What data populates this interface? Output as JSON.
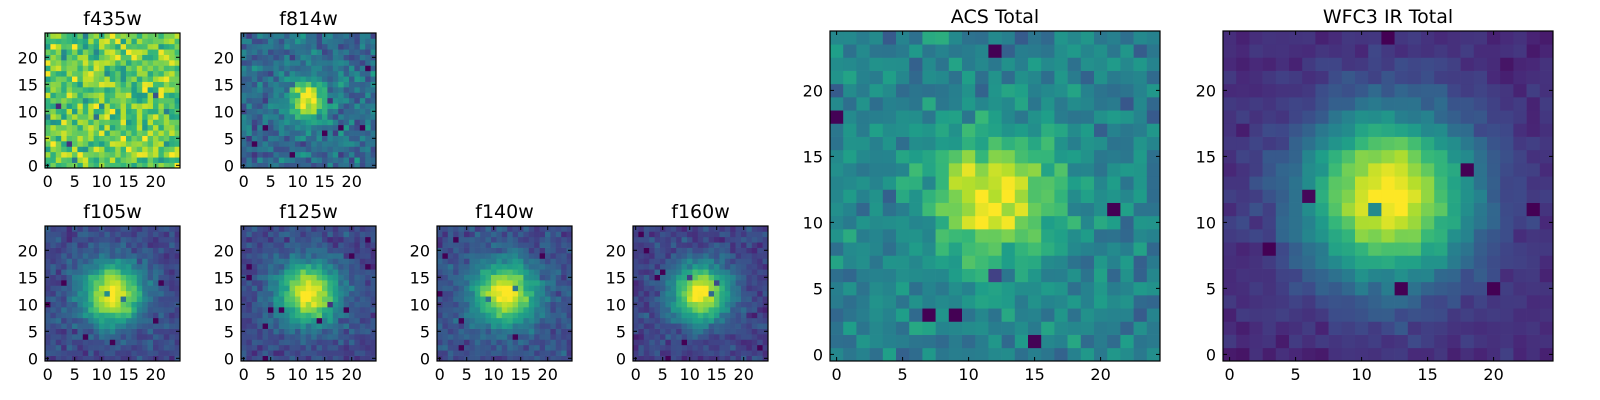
{
  "figure": {
    "colormap": "viridis",
    "colormap_stops": [
      "#440154",
      "#482878",
      "#3e4989",
      "#31688e",
      "#26828e",
      "#1f9e89",
      "#35b779",
      "#6ece58",
      "#b5de2b",
      "#fde725"
    ]
  },
  "chart_data": [
    {
      "type": "heatmap",
      "title": "f435w",
      "grid_size": 25,
      "xticks": [
        0,
        5,
        10,
        15,
        20
      ],
      "yticks": [
        0,
        5,
        10,
        15,
        20
      ],
      "xlim": [
        0,
        24
      ],
      "ylim": [
        0,
        24
      ],
      "colormap": "viridis",
      "image": {
        "kind": "noise",
        "background": 0.75,
        "noise": 0.18,
        "peak": 0.0,
        "center": [
          12,
          12
        ],
        "sigma": 4.0,
        "seed": 11
      }
    },
    {
      "type": "heatmap",
      "title": "f814w",
      "grid_size": 25,
      "xticks": [
        0,
        5,
        10,
        15,
        20
      ],
      "yticks": [
        0,
        5,
        10,
        15,
        20
      ],
      "xlim": [
        0,
        24
      ],
      "ylim": [
        0,
        24
      ],
      "colormap": "viridis",
      "image": {
        "kind": "source",
        "background": 0.35,
        "noise": 0.12,
        "peak": 0.65,
        "center": [
          12,
          12
        ],
        "sigma": 2.6,
        "seed": 23
      }
    },
    {
      "type": "heatmap",
      "title": "f105w",
      "grid_size": 25,
      "xticks": [
        0,
        5,
        10,
        15,
        20
      ],
      "yticks": [
        0,
        5,
        10,
        15,
        20
      ],
      "xlim": [
        0,
        24
      ],
      "ylim": [
        0,
        24
      ],
      "colormap": "viridis",
      "image": {
        "kind": "source",
        "background": 0.22,
        "noise": 0.07,
        "peak": 0.78,
        "center": [
          12,
          12
        ],
        "sigma": 4.0,
        "seed": 37
      }
    },
    {
      "type": "heatmap",
      "title": "f125w",
      "grid_size": 25,
      "xticks": [
        0,
        5,
        10,
        15,
        20
      ],
      "yticks": [
        0,
        5,
        10,
        15,
        20
      ],
      "xlim": [
        0,
        24
      ],
      "ylim": [
        0,
        24
      ],
      "colormap": "viridis",
      "image": {
        "kind": "source",
        "background": 0.22,
        "noise": 0.07,
        "peak": 0.78,
        "center": [
          12,
          12
        ],
        "sigma": 4.0,
        "seed": 41
      }
    },
    {
      "type": "heatmap",
      "title": "f140w",
      "grid_size": 25,
      "xticks": [
        0,
        5,
        10,
        15,
        20
      ],
      "yticks": [
        0,
        5,
        10,
        15,
        20
      ],
      "xlim": [
        0,
        24
      ],
      "ylim": [
        0,
        24
      ],
      "colormap": "viridis",
      "image": {
        "kind": "source",
        "background": 0.25,
        "noise": 0.07,
        "peak": 0.75,
        "center": [
          12,
          12
        ],
        "sigma": 4.0,
        "seed": 53
      }
    },
    {
      "type": "heatmap",
      "title": "f160w",
      "grid_size": 25,
      "xticks": [
        0,
        5,
        10,
        15,
        20
      ],
      "yticks": [
        0,
        5,
        10,
        15,
        20
      ],
      "xlim": [
        0,
        24
      ],
      "ylim": [
        0,
        24
      ],
      "colormap": "viridis",
      "image": {
        "kind": "source",
        "background": 0.2,
        "noise": 0.07,
        "peak": 0.8,
        "center": [
          12,
          12
        ],
        "sigma": 3.8,
        "seed": 67
      }
    },
    {
      "type": "heatmap",
      "title": "ACS Total",
      "grid_size": 25,
      "xticks": [
        0,
        5,
        10,
        15,
        20
      ],
      "yticks": [
        0,
        5,
        10,
        15,
        20
      ],
      "xlim": [
        0,
        24
      ],
      "ylim": [
        0,
        24
      ],
      "colormap": "viridis",
      "image": {
        "kind": "source",
        "background": 0.45,
        "noise": 0.1,
        "peak": 0.55,
        "center": [
          12,
          12
        ],
        "sigma": 3.2,
        "seed": 79
      }
    },
    {
      "type": "heatmap",
      "title": "WFC3 IR Total",
      "grid_size": 25,
      "xticks": [
        0,
        5,
        10,
        15,
        20
      ],
      "yticks": [
        0,
        5,
        10,
        15,
        20
      ],
      "xlim": [
        0,
        24
      ],
      "ylim": [
        0,
        24
      ],
      "colormap": "viridis",
      "image": {
        "kind": "source",
        "background": 0.12,
        "noise": 0.04,
        "peak": 0.88,
        "center": [
          12,
          12
        ],
        "sigma": 4.6,
        "seed": 97
      }
    }
  ]
}
